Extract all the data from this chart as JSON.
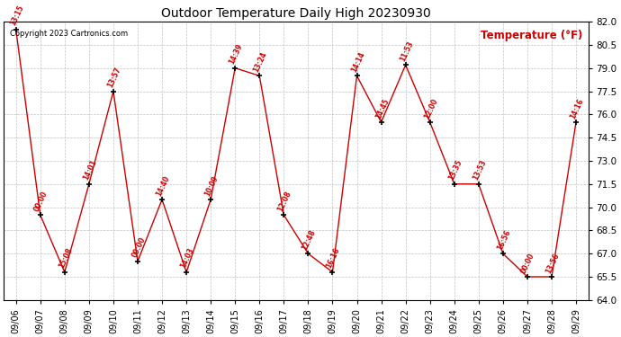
{
  "title": "Outdoor Temperature Daily High 20230930",
  "ylabel_text": "Temperature (°F)",
  "copyright": "Copyright 2023 Cartronics.com",
  "dates": [
    "09/06",
    "09/07",
    "09/08",
    "09/09",
    "09/10",
    "09/11",
    "09/12",
    "09/13",
    "09/14",
    "09/15",
    "09/16",
    "09/17",
    "09/18",
    "09/19",
    "09/20",
    "09/21",
    "09/22",
    "09/23",
    "09/24",
    "09/25",
    "09/26",
    "09/27",
    "09/28",
    "09/29"
  ],
  "temps": [
    81.5,
    69.5,
    65.8,
    71.5,
    77.5,
    66.5,
    70.5,
    65.8,
    70.5,
    79.0,
    78.5,
    69.5,
    67.0,
    65.8,
    78.5,
    75.5,
    79.2,
    75.5,
    71.5,
    71.5,
    67.0,
    65.5,
    65.5,
    75.5
  ],
  "time_labels": [
    "13:15",
    "00:00",
    "15:08",
    "14:01",
    "13:57",
    "00:00",
    "14:40",
    "14:03",
    "10:09",
    "14:39",
    "13:24",
    "12:08",
    "12:48",
    "16:16",
    "14:14",
    "14:45",
    "11:53",
    "12:00",
    "13:35",
    "13:53",
    "16:56",
    "00:00",
    "13:56",
    "14:16"
  ],
  "ylim": [
    64.0,
    82.0
  ],
  "yticks": [
    64.0,
    65.5,
    67.0,
    68.5,
    70.0,
    71.5,
    73.0,
    74.5,
    76.0,
    77.5,
    79.0,
    80.5,
    82.0
  ],
  "line_color": "#cc0000",
  "marker_color": "#000000",
  "label_color": "#cc0000",
  "title_color": "#000000",
  "copyright_color": "#000000",
  "ylabel_color": "#cc0000",
  "background_color": "#ffffff",
  "grid_color": "#bbbbbb",
  "figwidth": 6.9,
  "figheight": 3.75,
  "dpi": 100
}
